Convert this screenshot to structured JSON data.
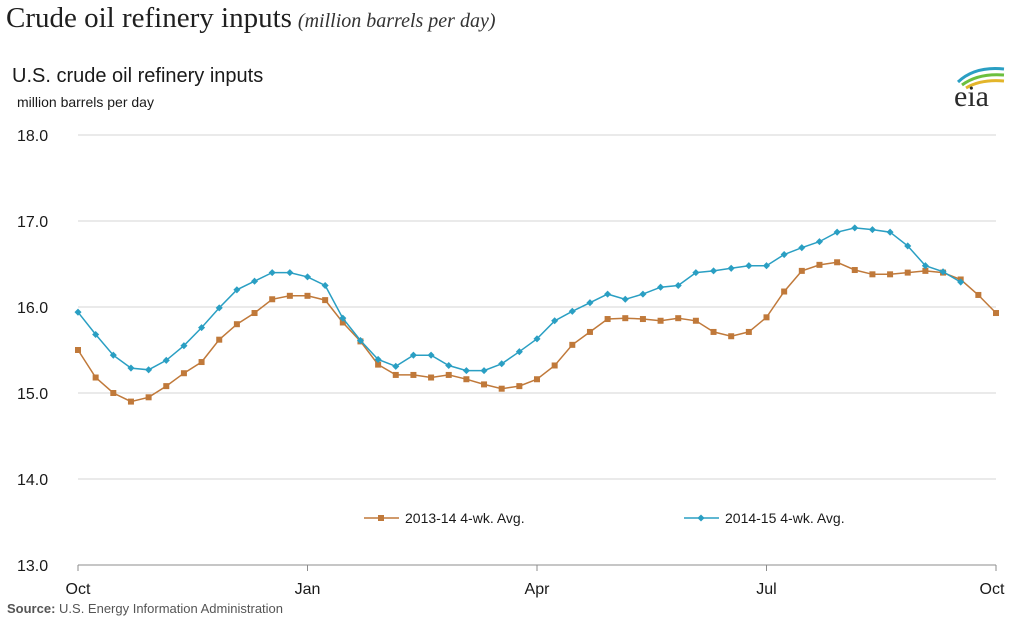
{
  "page": {
    "title": "Crude oil refinery inputs",
    "subtitle": "(million barrels per day)"
  },
  "logo": {
    "text": "eia",
    "icon": "eia-logo-icon"
  },
  "source": {
    "label": "Source:",
    "text": " U.S. Energy Information Administration"
  },
  "colors": {
    "series_2013": "#c0793a",
    "series_2014": "#2a9fc3",
    "grid": "#d4d4d4"
  },
  "chart_data": {
    "type": "line",
    "title": "U.S. crude oil refinery inputs",
    "ylabel": "million barrels per day",
    "ylim": [
      13.0,
      18.0
    ],
    "yticks": [
      "13.0",
      "14.0",
      "15.0",
      "16.0",
      "17.0",
      "18.0"
    ],
    "ytick_values": [
      13,
      14,
      15,
      16,
      17,
      18
    ],
    "xlim": [
      0,
      52
    ],
    "xticks": [
      "Oct",
      "Jan",
      "Apr",
      "Jul",
      "Oct"
    ],
    "xtick_values": [
      0,
      13,
      26,
      39,
      52
    ],
    "grid": true,
    "legend": "bottom",
    "series": [
      {
        "name": "2013-14  4-wk. Avg.",
        "marker": "square",
        "values": [
          15.5,
          15.18,
          15.0,
          14.9,
          14.95,
          15.08,
          15.23,
          15.36,
          15.62,
          15.8,
          15.93,
          16.09,
          16.13,
          16.13,
          16.08,
          15.82,
          15.6,
          15.33,
          15.21,
          15.21,
          15.18,
          15.21,
          15.16,
          15.1,
          15.05,
          15.08,
          15.16,
          15.32,
          15.56,
          15.71,
          15.86,
          15.87,
          15.86,
          15.84,
          15.87,
          15.84,
          15.71,
          15.66,
          15.71,
          15.88,
          16.18,
          16.42,
          16.49,
          16.52,
          16.43,
          16.38,
          16.38,
          16.4,
          16.42,
          16.4,
          16.32,
          16.14,
          15.93
        ]
      },
      {
        "name": "2014-15  4-wk. Avg.",
        "marker": "diamond",
        "values": [
          15.94,
          15.68,
          15.44,
          15.29,
          15.27,
          15.38,
          15.55,
          15.76,
          15.99,
          16.2,
          16.3,
          16.4,
          16.4,
          16.35,
          16.25,
          15.87,
          15.61,
          15.39,
          15.31,
          15.44,
          15.44,
          15.32,
          15.26,
          15.26,
          15.34,
          15.48,
          15.63,
          15.84,
          15.95,
          16.05,
          16.15,
          16.09,
          16.15,
          16.23,
          16.25,
          16.4,
          16.42,
          16.45,
          16.48,
          16.48,
          16.61,
          16.69,
          16.76,
          16.87,
          16.92,
          16.9,
          16.87,
          16.71,
          16.48,
          16.41,
          16.29
        ]
      }
    ]
  }
}
